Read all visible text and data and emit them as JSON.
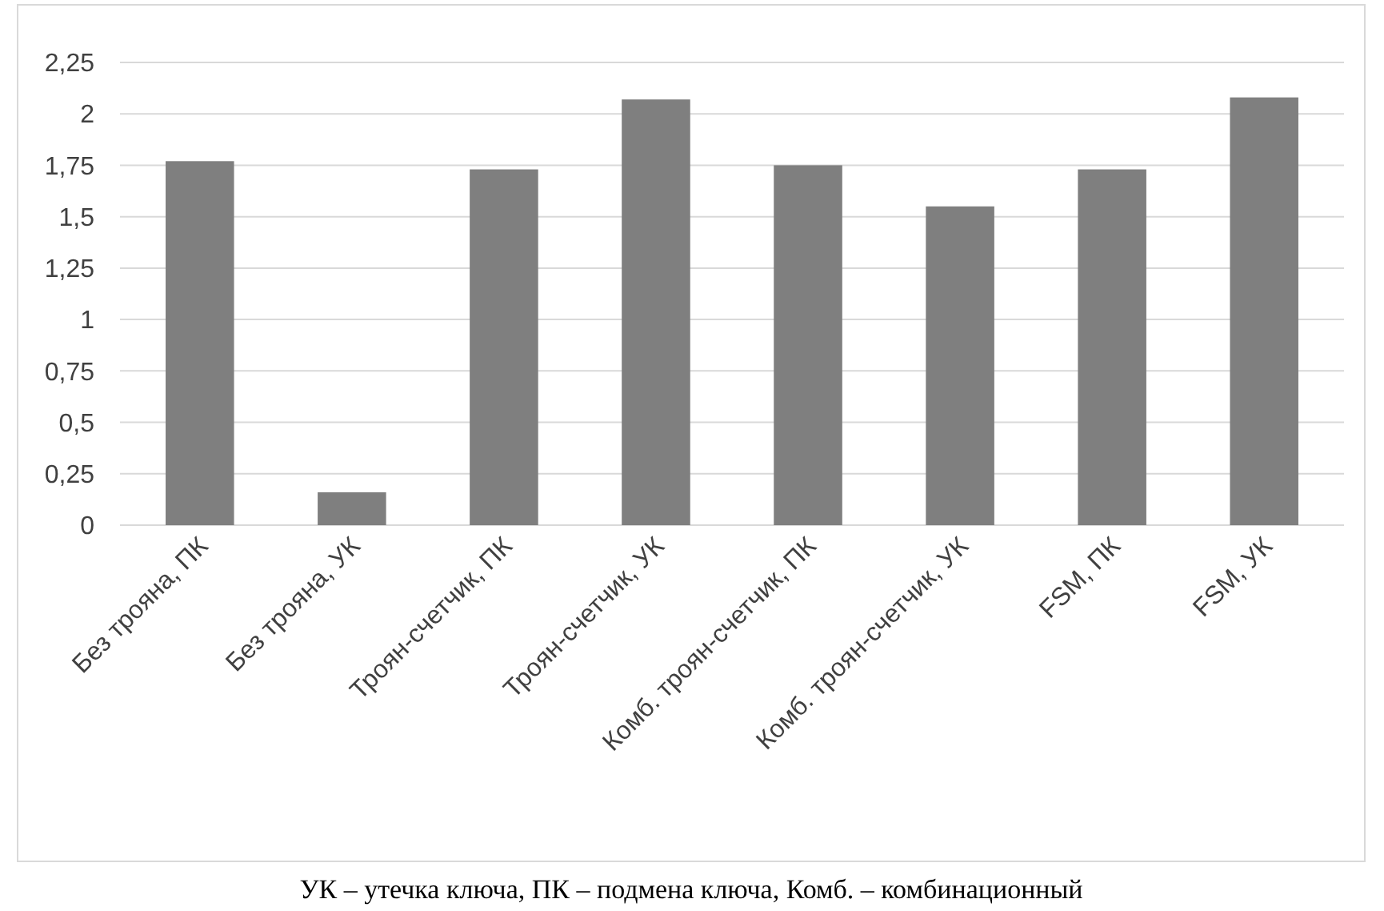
{
  "chart_data": {
    "type": "bar",
    "categories": [
      "Без трояна, ПК",
      "Без трояна, УК",
      "Троян-счетчик, ПК",
      "Троян-счетчик, УК",
      "Комб. троян-счетчик, ПК",
      "Комб. троян-счетчик, УК",
      "FSM, ПК",
      "FSM, УК"
    ],
    "values": [
      1.77,
      0.16,
      1.73,
      2.07,
      1.75,
      1.55,
      1.73,
      2.08
    ],
    "color": "#7f7f7f",
    "ylim": [
      0,
      2.25
    ],
    "yticks": [
      {
        "value": 0,
        "label": "0"
      },
      {
        "value": 0.25,
        "label": "0,25"
      },
      {
        "value": 0.5,
        "label": "0,5"
      },
      {
        "value": 0.75,
        "label": "0,75"
      },
      {
        "value": 1,
        "label": "1"
      },
      {
        "value": 1.25,
        "label": "1,25"
      },
      {
        "value": 1.5,
        "label": "1,5"
      },
      {
        "value": 1.75,
        "label": "1,75"
      },
      {
        "value": 2,
        "label": "2"
      },
      {
        "value": 2.25,
        "label": "2,25"
      }
    ],
    "grid": "y",
    "annotations": [
      "УК – утечка ключа, ПК – подмена ключа, Комб. – комбинационный"
    ]
  }
}
